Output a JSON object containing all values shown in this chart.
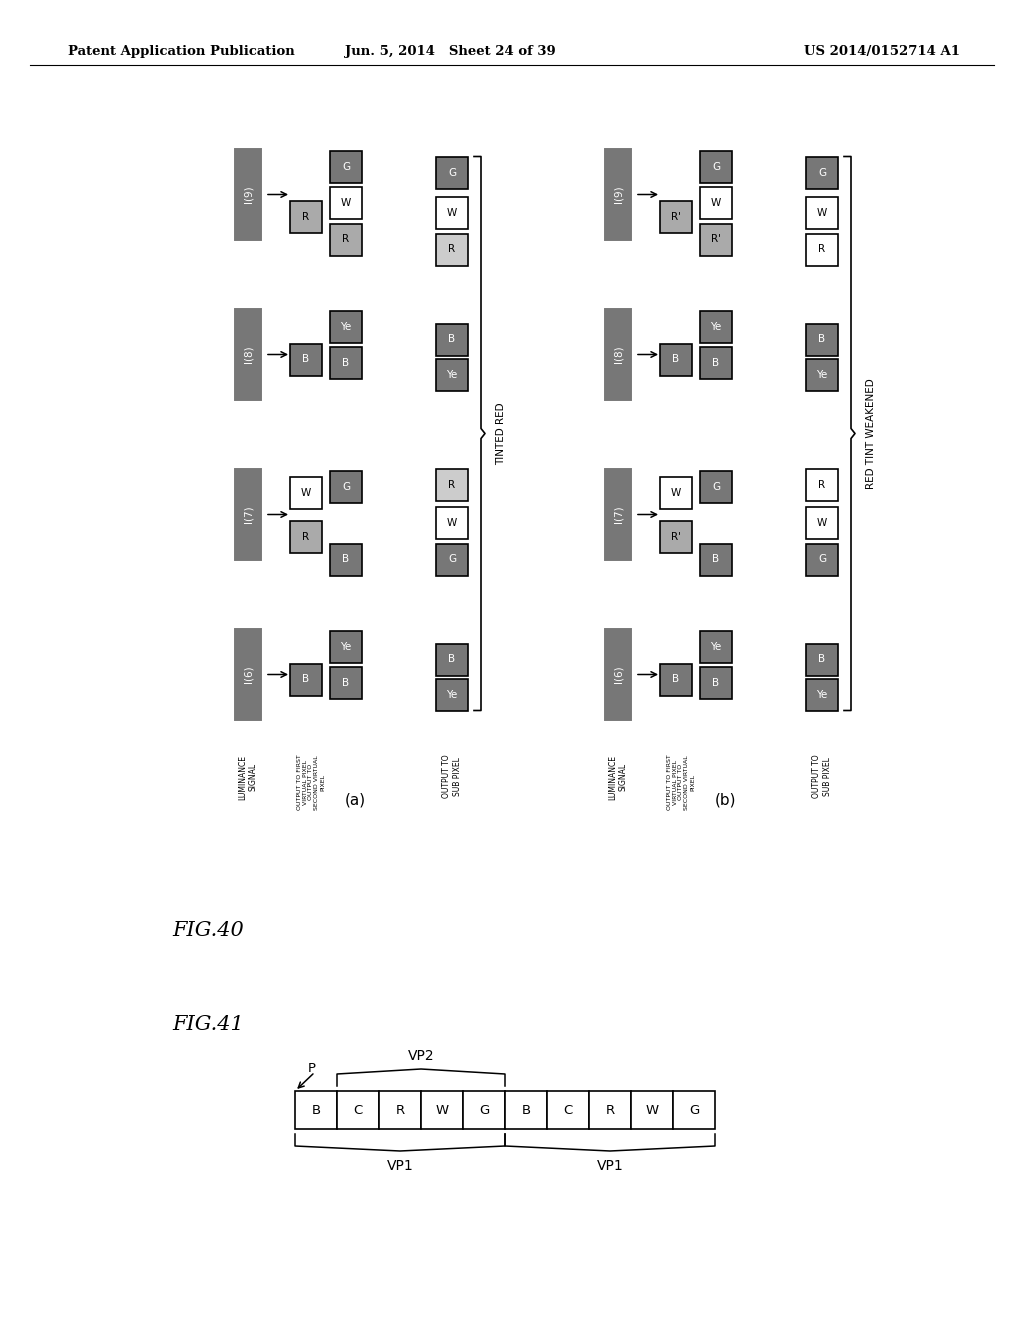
{
  "header_left": "Patent Application Publication",
  "header_mid": "Jun. 5, 2014   Sheet 24 of 39",
  "header_right": "US 2014/0152714 A1",
  "fig40_label": "FIG.40",
  "fig41_label": "FIG.41",
  "fig_a_label": "(a)",
  "fig_b_label": "(b)",
  "tinted_red_label": "TINTED RED",
  "red_tint_weakened_label": "RED TINT WEAKENED",
  "bg_color": "#ffffff",
  "dark_gray": "#777777",
  "medium_gray": "#aaaaaa",
  "light_gray": "#cccccc",
  "box_white": "#ffffff"
}
